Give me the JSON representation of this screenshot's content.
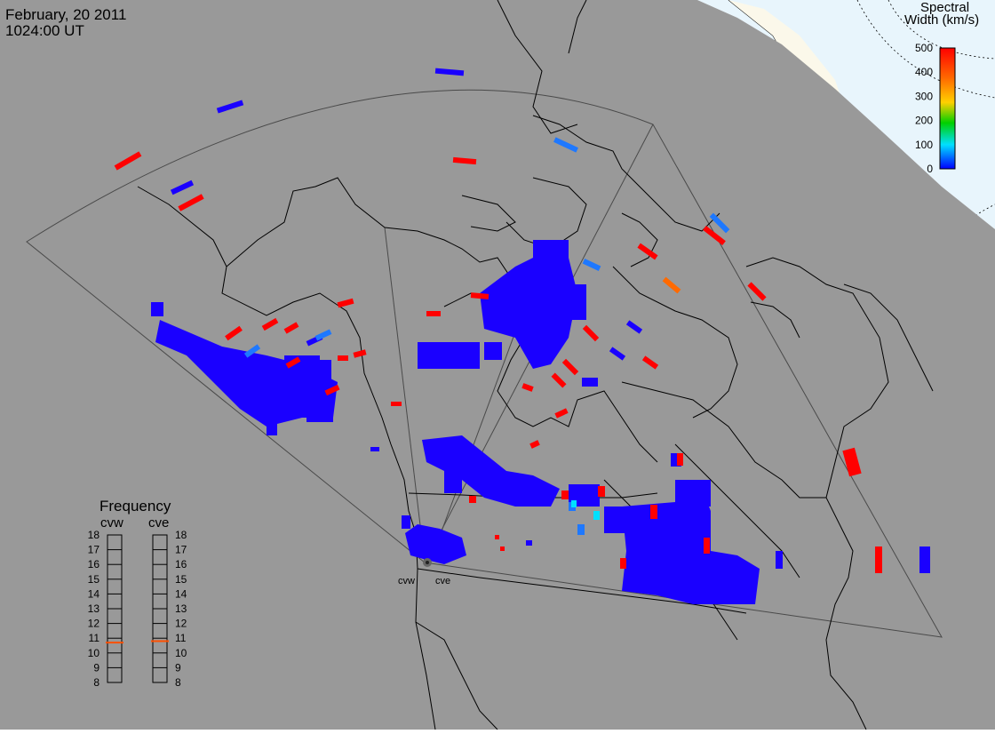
{
  "header": {
    "date": "February, 20 2011",
    "time": "1024:00 UT"
  },
  "colorbar": {
    "title_line1": "Spectral",
    "title_line2": "Width (km/s)",
    "ticks": [
      "500",
      "400",
      "300",
      "200",
      "100",
      "0"
    ],
    "stops": [
      "#ff0000",
      "#ff6a00",
      "#ffd000",
      "#00d000",
      "#00e0ff",
      "#0000ff"
    ]
  },
  "frequency": {
    "title": "Frequency",
    "left_label": "cvw",
    "right_label": "cve",
    "levels": [
      "18",
      "17",
      "16",
      "15",
      "14",
      "13",
      "12",
      "11",
      "10",
      "9",
      "8"
    ],
    "cvw_value": 10.7,
    "cve_value": 10.8,
    "marker_color": "#ff5000"
  },
  "sites": {
    "cvw": "cvw",
    "cve": "cve"
  },
  "colors": {
    "background_gray": "#999999",
    "outside_fill": "#e8f5fc",
    "coast_line": "#000000",
    "echo_low": "#1a00ff",
    "echo_mid": "#1e78ff",
    "echo_high": "#ff0000"
  }
}
